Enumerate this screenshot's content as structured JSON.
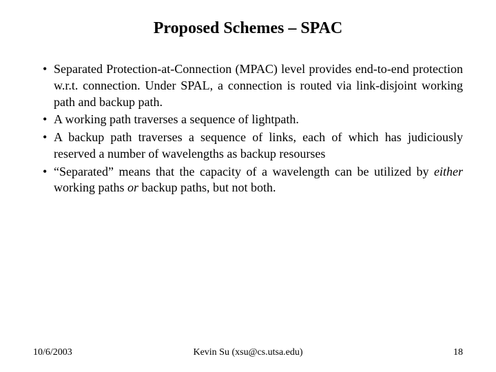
{
  "title": "Proposed Schemes – SPAC",
  "bullets": [
    {
      "text": "Separated Protection-at-Connection (MPAC) level provides end-to-end protection w.r.t. connection. Under SPAL, a connection is routed via link-disjoint working path and backup path."
    },
    {
      "text": "A working path traverses a sequence of lightpath."
    },
    {
      "text": "A backup path traverses a sequence of links, each of which has judiciously reserved a number of wavelengths as backup resourses"
    },
    {
      "html": "“Separated” means that the capacity of a wavelength can be utilized by <em>either</em> working paths <em>or</em> backup paths, but not both."
    }
  ],
  "footer": {
    "date": "10/6/2003",
    "author": "Kevin Su (xsu@cs.utsa.edu)",
    "page": "18"
  }
}
